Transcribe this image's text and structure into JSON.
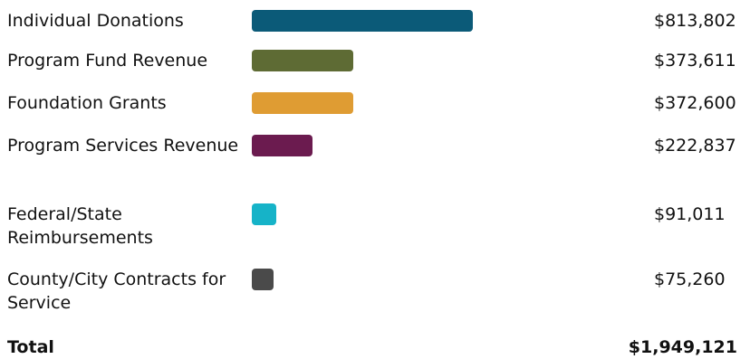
{
  "chart_data": {
    "type": "bar",
    "orientation": "horizontal",
    "categories": [
      "Individual Donations",
      "Program Fund Revenue",
      "Foundation Grants",
      "Program Services Revenue",
      "Federal/State Reimbursements",
      "County/City Contracts for Service"
    ],
    "values": [
      813802,
      373611,
      372600,
      222837,
      91011,
      75260
    ],
    "value_labels": [
      "$813,802",
      "$373,611",
      "$372,600",
      "$222,837",
      "$91,011",
      "$75,260"
    ],
    "colors": [
      "#0b5a78",
      "#5e6b34",
      "#df9c33",
      "#6b1b4f",
      "#16b3c8",
      "#4a4a4a"
    ],
    "total_label": "Total",
    "total_value": "$1,949,121",
    "xlim": [
      0,
      813802
    ],
    "grid": false,
    "legend": "none"
  }
}
